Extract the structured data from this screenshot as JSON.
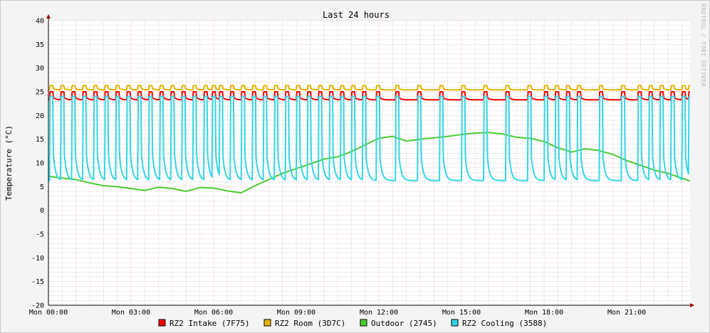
{
  "chart_data": {
    "type": "line",
    "title": "Last 24 hours",
    "ylabel": "Temperature (°C)",
    "watermark": "RRDTOOL / TOBI OETIKER",
    "ylim": [
      -20,
      40
    ],
    "yticks": [
      40,
      35,
      30,
      25,
      20,
      15,
      10,
      5,
      0,
      -5,
      -10,
      -15,
      -20
    ],
    "xlim_hours": [
      0,
      23.3
    ],
    "xticks": [
      {
        "hour": 0,
        "label": "Mon 00:00"
      },
      {
        "hour": 3,
        "label": "Mon 03:00"
      },
      {
        "hour": 6,
        "label": "Mon 06:00"
      },
      {
        "hour": 9,
        "label": "Mon 09:00"
      },
      {
        "hour": 12,
        "label": "Mon 12:00"
      },
      {
        "hour": 15,
        "label": "Mon 15:00"
      },
      {
        "hour": 18,
        "label": "Mon 18:00"
      },
      {
        "hour": 21,
        "label": "Mon 21:00"
      }
    ],
    "grid": true,
    "legend_position": "bottom",
    "series": [
      {
        "name": "RZ2 Intake (7F75)",
        "color": "#ff0000",
        "pattern": "cycling",
        "base": 23.3,
        "peak": 25.0,
        "cycles_hours": [
          0.05,
          0.45,
          0.85,
          1.25,
          1.65,
          2.05,
          2.45,
          2.85,
          3.25,
          3.65,
          4.05,
          4.45,
          4.85,
          5.25,
          5.65,
          5.95,
          6.2,
          6.6,
          7.0,
          7.4,
          7.8,
          8.2,
          8.6,
          9.0,
          9.4,
          9.8,
          10.2,
          10.6,
          11.0,
          11.4,
          11.9,
          12.6,
          13.4,
          14.2,
          15.0,
          15.8,
          16.6,
          17.4,
          18.0,
          18.4,
          18.8,
          19.2,
          20.0,
          20.8,
          21.4,
          21.8,
          22.2,
          22.6,
          23.0,
          23.25
        ]
      },
      {
        "name": "RZ2 Room (3D7C)",
        "color": "#e6b400",
        "pattern": "cycling",
        "base": 25.4,
        "peak": 26.3,
        "cycles_hours": [
          0.05,
          0.45,
          0.85,
          1.25,
          1.65,
          2.05,
          2.45,
          2.85,
          3.25,
          3.65,
          4.05,
          4.45,
          4.85,
          5.25,
          5.65,
          5.95,
          6.2,
          6.6,
          7.0,
          7.4,
          7.8,
          8.2,
          8.6,
          9.0,
          9.4,
          9.8,
          10.2,
          10.6,
          11.0,
          11.4,
          11.9,
          12.6,
          13.4,
          14.2,
          15.0,
          15.8,
          16.6,
          17.4,
          18.0,
          18.4,
          18.8,
          19.2,
          20.0,
          20.8,
          21.4,
          21.8,
          22.2,
          22.6,
          23.0,
          23.25
        ]
      },
      {
        "name": "Outdoor (2745)",
        "color": "#4ccc33",
        "pattern": "trend",
        "hours": [
          0,
          0.5,
          1,
          1.5,
          2,
          2.5,
          3,
          3.5,
          4,
          4.5,
          5,
          5.5,
          6,
          6.5,
          7,
          7.5,
          8,
          8.5,
          9,
          9.5,
          10,
          10.5,
          11,
          11.5,
          12,
          12.5,
          13,
          13.5,
          14,
          14.5,
          15,
          15.5,
          16,
          16.5,
          17,
          17.5,
          18,
          18.5,
          19,
          19.5,
          20,
          20.5,
          21,
          21.5,
          22,
          22.5,
          23,
          23.3
        ],
        "values": [
          7.2,
          6.8,
          6.5,
          5.8,
          5.2,
          5.0,
          4.6,
          4.2,
          4.9,
          4.6,
          4.0,
          4.8,
          4.7,
          4.1,
          3.7,
          5.2,
          6.5,
          7.8,
          8.8,
          9.8,
          10.8,
          11.3,
          12.4,
          13.8,
          15.2,
          15.6,
          14.6,
          15.0,
          15.3,
          15.6,
          16.0,
          16.3,
          16.4,
          16.1,
          15.4,
          15.2,
          14.5,
          13.2,
          12.3,
          13.0,
          12.6,
          11.8,
          10.5,
          9.5,
          8.5,
          7.8,
          6.8,
          6.2
        ]
      },
      {
        "name": "RZ2 Cooling (3588)",
        "color": "#33d6e6",
        "pattern": "cycling",
        "base": 6.3,
        "peak": 24.0,
        "cycles_hours": [
          0.05,
          0.45,
          0.85,
          1.25,
          1.65,
          2.05,
          2.45,
          2.85,
          3.25,
          3.65,
          4.05,
          4.45,
          4.85,
          5.25,
          5.65,
          5.95,
          6.2,
          6.6,
          7.0,
          7.4,
          7.8,
          8.2,
          8.6,
          9.0,
          9.4,
          9.8,
          10.2,
          10.6,
          11.0,
          11.4,
          11.9,
          12.6,
          13.4,
          14.2,
          15.0,
          15.8,
          16.6,
          17.4,
          18.0,
          18.4,
          18.8,
          19.2,
          20.0,
          20.8,
          21.4,
          21.8,
          22.2,
          22.6,
          23.0,
          23.25
        ]
      }
    ]
  }
}
